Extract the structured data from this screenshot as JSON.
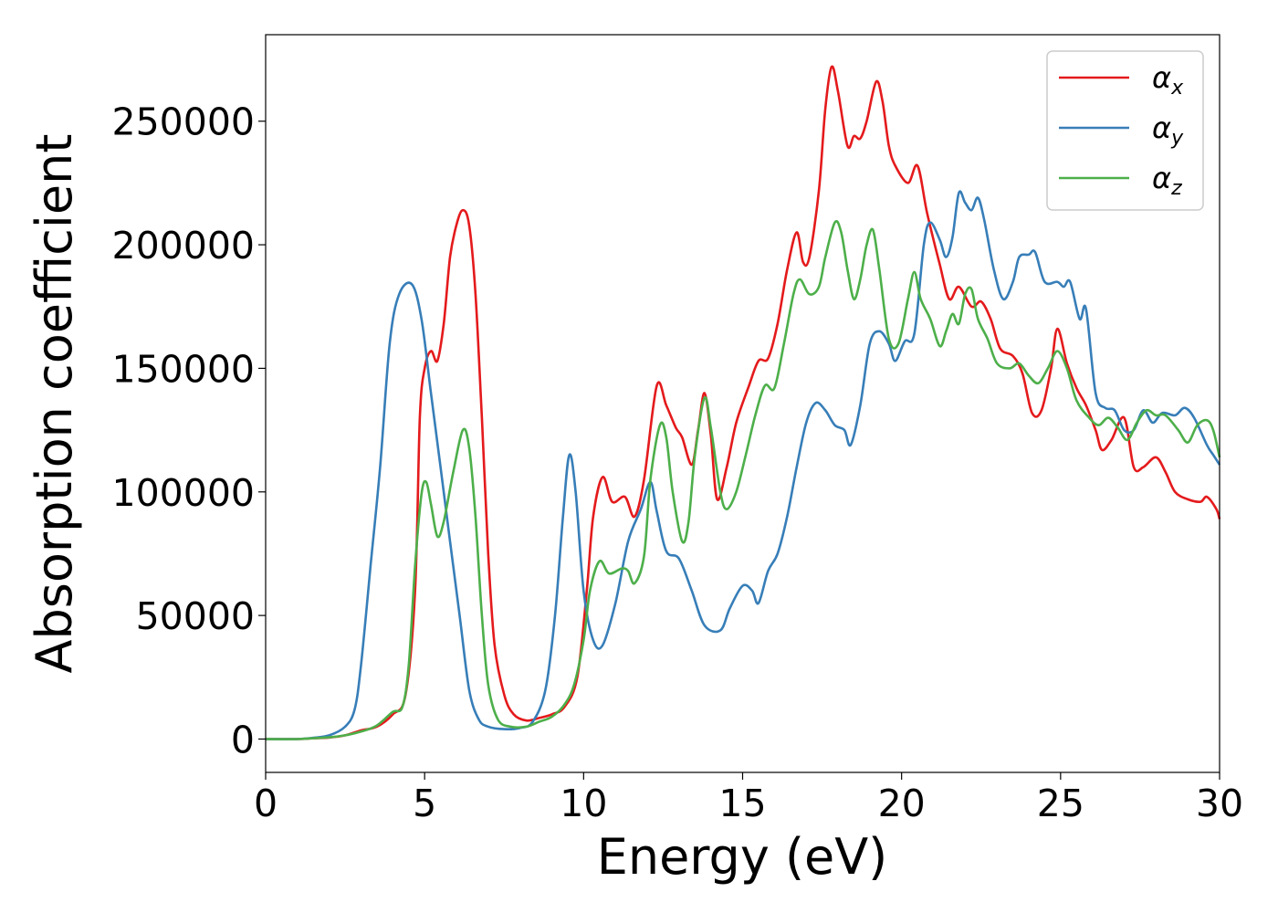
{
  "chart_data": {
    "type": "line",
    "title": "",
    "xlabel": "Energy (eV)",
    "ylabel": "Absorption coefficient",
    "xlim": [
      0,
      30
    ],
    "ylim": [
      -13500,
      285000
    ],
    "xticks": [
      0,
      5,
      10,
      15,
      20,
      25,
      30
    ],
    "yticks": [
      0,
      50000,
      100000,
      150000,
      200000,
      250000
    ],
    "grid": false,
    "legend_position": "top-right",
    "series": [
      {
        "name": "α_x",
        "legend_symbol": "α",
        "legend_subscript": "x",
        "color": "#e41a1c",
        "points": [
          [
            0,
            0
          ],
          [
            1,
            0
          ],
          [
            1.5,
            300
          ],
          [
            2,
            600
          ],
          [
            2.5,
            1500
          ],
          [
            3,
            3500
          ],
          [
            3.5,
            5000
          ],
          [
            4,
            10000
          ],
          [
            4.4,
            18000
          ],
          [
            4.7,
            60000
          ],
          [
            4.85,
            130000
          ],
          [
            5,
            150000
          ],
          [
            5.2,
            157000
          ],
          [
            5.4,
            153000
          ],
          [
            5.6,
            168000
          ],
          [
            5.8,
            195000
          ],
          [
            6,
            208000
          ],
          [
            6.2,
            214000
          ],
          [
            6.4,
            208000
          ],
          [
            6.6,
            180000
          ],
          [
            6.8,
            130000
          ],
          [
            7,
            75000
          ],
          [
            7.2,
            38000
          ],
          [
            7.5,
            18000
          ],
          [
            7.8,
            10000
          ],
          [
            8.2,
            7500
          ],
          [
            8.6,
            8500
          ],
          [
            9,
            10000
          ],
          [
            9.4,
            13000
          ],
          [
            9.8,
            25000
          ],
          [
            10.1,
            60000
          ],
          [
            10.3,
            90000
          ],
          [
            10.6,
            106000
          ],
          [
            10.9,
            96000
          ],
          [
            11.3,
            98000
          ],
          [
            11.6,
            90000
          ],
          [
            11.9,
            105000
          ],
          [
            12.3,
            143000
          ],
          [
            12.6,
            135000
          ],
          [
            12.9,
            126000
          ],
          [
            13.1,
            122000
          ],
          [
            13.4,
            111000
          ],
          [
            13.6,
            125000
          ],
          [
            13.8,
            140000
          ],
          [
            14,
            123000
          ],
          [
            14.2,
            97000
          ],
          [
            14.5,
            110000
          ],
          [
            14.8,
            128000
          ],
          [
            15.2,
            143000
          ],
          [
            15.5,
            153000
          ],
          [
            15.8,
            154000
          ],
          [
            16.1,
            168000
          ],
          [
            16.4,
            190000
          ],
          [
            16.7,
            205000
          ],
          [
            16.9,
            193000
          ],
          [
            17.1,
            195000
          ],
          [
            17.4,
            222000
          ],
          [
            17.6,
            255000
          ],
          [
            17.8,
            272000
          ],
          [
            18,
            262000
          ],
          [
            18.3,
            240000
          ],
          [
            18.5,
            244000
          ],
          [
            18.7,
            243000
          ],
          [
            18.9,
            250000
          ],
          [
            19.2,
            266000
          ],
          [
            19.4,
            258000
          ],
          [
            19.6,
            240000
          ],
          [
            19.8,
            232000
          ],
          [
            20.2,
            225000
          ],
          [
            20.5,
            232000
          ],
          [
            20.8,
            213000
          ],
          [
            21.2,
            192000
          ],
          [
            21.5,
            178000
          ],
          [
            21.8,
            183000
          ],
          [
            22.2,
            175000
          ],
          [
            22.5,
            177000
          ],
          [
            22.8,
            170000
          ],
          [
            23.1,
            158000
          ],
          [
            23.5,
            155000
          ],
          [
            23.8,
            148000
          ],
          [
            24.1,
            132000
          ],
          [
            24.4,
            133000
          ],
          [
            24.7,
            150000
          ],
          [
            24.9,
            166000
          ],
          [
            25.2,
            152000
          ],
          [
            25.5,
            142000
          ],
          [
            25.8,
            135000
          ],
          [
            26.1,
            125000
          ],
          [
            26.3,
            117000
          ],
          [
            26.6,
            121000
          ],
          [
            27,
            130000
          ],
          [
            27.3,
            110000
          ],
          [
            27.6,
            110000
          ],
          [
            28,
            114000
          ],
          [
            28.3,
            108000
          ],
          [
            28.6,
            100000
          ],
          [
            29,
            97000
          ],
          [
            29.4,
            96000
          ],
          [
            29.6,
            98000
          ],
          [
            29.9,
            93000
          ],
          [
            30,
            89000
          ]
        ]
      },
      {
        "name": "α_y",
        "legend_symbol": "α",
        "legend_subscript": "y",
        "color": "#377eb8",
        "points": [
          [
            0,
            0
          ],
          [
            1,
            0
          ],
          [
            1.5,
            500
          ],
          [
            2,
            1500
          ],
          [
            2.5,
            5000
          ],
          [
            2.8,
            12000
          ],
          [
            3,
            30000
          ],
          [
            3.3,
            70000
          ],
          [
            3.6,
            110000
          ],
          [
            3.9,
            160000
          ],
          [
            4.2,
            180000
          ],
          [
            4.6,
            184000
          ],
          [
            4.9,
            170000
          ],
          [
            5.2,
            140000
          ],
          [
            5.5,
            110000
          ],
          [
            5.8,
            80000
          ],
          [
            6.1,
            50000
          ],
          [
            6.4,
            20000
          ],
          [
            6.7,
            8000
          ],
          [
            7,
            5000
          ],
          [
            7.5,
            4000
          ],
          [
            8,
            4500
          ],
          [
            8.4,
            7000
          ],
          [
            8.8,
            20000
          ],
          [
            9.1,
            50000
          ],
          [
            9.35,
            90000
          ],
          [
            9.55,
            115000
          ],
          [
            9.75,
            100000
          ],
          [
            10,
            60000
          ],
          [
            10.3,
            40000
          ],
          [
            10.6,
            38000
          ],
          [
            11,
            55000
          ],
          [
            11.4,
            80000
          ],
          [
            11.8,
            93000
          ],
          [
            12.1,
            104000
          ],
          [
            12.3,
            92000
          ],
          [
            12.6,
            76000
          ],
          [
            13,
            73000
          ],
          [
            13.4,
            60000
          ],
          [
            13.8,
            46000
          ],
          [
            14.3,
            44000
          ],
          [
            14.6,
            53000
          ],
          [
            15,
            62000
          ],
          [
            15.3,
            60000
          ],
          [
            15.5,
            55000
          ],
          [
            15.8,
            68000
          ],
          [
            16.1,
            75000
          ],
          [
            16.4,
            90000
          ],
          [
            16.7,
            110000
          ],
          [
            17,
            128000
          ],
          [
            17.3,
            136000
          ],
          [
            17.6,
            133000
          ],
          [
            17.9,
            127000
          ],
          [
            18.2,
            125000
          ],
          [
            18.4,
            119000
          ],
          [
            18.7,
            135000
          ],
          [
            19,
            160000
          ],
          [
            19.3,
            165000
          ],
          [
            19.6,
            160000
          ],
          [
            19.8,
            153000
          ],
          [
            20.1,
            161000
          ],
          [
            20.4,
            164000
          ],
          [
            20.7,
            200000
          ],
          [
            20.9,
            209000
          ],
          [
            21.2,
            202000
          ],
          [
            21.4,
            195000
          ],
          [
            21.6,
            203000
          ],
          [
            21.8,
            221000
          ],
          [
            22,
            217000
          ],
          [
            22.2,
            214000
          ],
          [
            22.4,
            219000
          ],
          [
            22.6,
            210000
          ],
          [
            22.9,
            190000
          ],
          [
            23.2,
            178000
          ],
          [
            23.5,
            185000
          ],
          [
            23.7,
            195000
          ],
          [
            24,
            196000
          ],
          [
            24.2,
            197000
          ],
          [
            24.5,
            185000
          ],
          [
            24.9,
            185000
          ],
          [
            25.1,
            183000
          ],
          [
            25.3,
            185000
          ],
          [
            25.6,
            170000
          ],
          [
            25.8,
            174000
          ],
          [
            26.1,
            140000
          ],
          [
            26.4,
            134000
          ],
          [
            26.7,
            133000
          ],
          [
            27,
            125000
          ],
          [
            27.3,
            125000
          ],
          [
            27.6,
            133000
          ],
          [
            27.9,
            128000
          ],
          [
            28.2,
            132000
          ],
          [
            28.6,
            131000
          ],
          [
            28.9,
            134000
          ],
          [
            29.2,
            130000
          ],
          [
            29.6,
            119000
          ],
          [
            29.8,
            115000
          ],
          [
            30,
            111000
          ]
        ]
      },
      {
        "name": "α_z",
        "legend_symbol": "α",
        "legend_subscript": "z",
        "color": "#4daf4a",
        "points": [
          [
            0,
            0
          ],
          [
            1,
            0
          ],
          [
            2,
            700
          ],
          [
            2.5,
            1500
          ],
          [
            3,
            3000
          ],
          [
            3.5,
            5500
          ],
          [
            4,
            11000
          ],
          [
            4.3,
            13000
          ],
          [
            4.5,
            30000
          ],
          [
            4.7,
            70000
          ],
          [
            4.9,
            99000
          ],
          [
            5.05,
            104000
          ],
          [
            5.2,
            95000
          ],
          [
            5.4,
            82000
          ],
          [
            5.6,
            88000
          ],
          [
            5.9,
            108000
          ],
          [
            6.2,
            125000
          ],
          [
            6.4,
            118000
          ],
          [
            6.6,
            90000
          ],
          [
            6.8,
            50000
          ],
          [
            7,
            22000
          ],
          [
            7.3,
            8000
          ],
          [
            7.7,
            5000
          ],
          [
            8.2,
            5000
          ],
          [
            8.6,
            7000
          ],
          [
            9,
            9000
          ],
          [
            9.4,
            14000
          ],
          [
            9.7,
            22000
          ],
          [
            10,
            40000
          ],
          [
            10.2,
            60000
          ],
          [
            10.5,
            72000
          ],
          [
            10.8,
            67000
          ],
          [
            11.2,
            69000
          ],
          [
            11.4,
            68000
          ],
          [
            11.6,
            63000
          ],
          [
            11.9,
            74000
          ],
          [
            12.1,
            105000
          ],
          [
            12.4,
            127000
          ],
          [
            12.6,
            122000
          ],
          [
            12.8,
            100000
          ],
          [
            13.1,
            80000
          ],
          [
            13.3,
            88000
          ],
          [
            13.5,
            115000
          ],
          [
            13.8,
            138000
          ],
          [
            14,
            126000
          ],
          [
            14.3,
            100000
          ],
          [
            14.5,
            93000
          ],
          [
            14.8,
            100000
          ],
          [
            15.1,
            115000
          ],
          [
            15.4,
            131000
          ],
          [
            15.7,
            143000
          ],
          [
            16,
            142000
          ],
          [
            16.3,
            160000
          ],
          [
            16.6,
            180000
          ],
          [
            16.8,
            186000
          ],
          [
            17.1,
            180000
          ],
          [
            17.4,
            183000
          ],
          [
            17.6,
            195000
          ],
          [
            17.9,
            209000
          ],
          [
            18.1,
            205000
          ],
          [
            18.3,
            190000
          ],
          [
            18.5,
            178000
          ],
          [
            18.7,
            186000
          ],
          [
            18.9,
            200000
          ],
          [
            19.1,
            206000
          ],
          [
            19.3,
            190000
          ],
          [
            19.6,
            162000
          ],
          [
            19.9,
            160000
          ],
          [
            20.2,
            178000
          ],
          [
            20.4,
            189000
          ],
          [
            20.6,
            178000
          ],
          [
            20.9,
            170000
          ],
          [
            21.2,
            159000
          ],
          [
            21.4,
            165000
          ],
          [
            21.6,
            172000
          ],
          [
            21.8,
            168000
          ],
          [
            22,
            180000
          ],
          [
            22.2,
            182000
          ],
          [
            22.4,
            170000
          ],
          [
            22.7,
            162000
          ],
          [
            23,
            152000
          ],
          [
            23.4,
            150000
          ],
          [
            23.7,
            152000
          ],
          [
            24,
            147000
          ],
          [
            24.3,
            144000
          ],
          [
            24.6,
            150000
          ],
          [
            24.9,
            157000
          ],
          [
            25.2,
            150000
          ],
          [
            25.5,
            137000
          ],
          [
            25.9,
            130000
          ],
          [
            26.2,
            127000
          ],
          [
            26.5,
            130000
          ],
          [
            26.8,
            126000
          ],
          [
            27.1,
            121000
          ],
          [
            27.4,
            128000
          ],
          [
            27.7,
            133000
          ],
          [
            28,
            131000
          ],
          [
            28.3,
            131000
          ],
          [
            28.7,
            125000
          ],
          [
            29,
            120000
          ],
          [
            29.3,
            127000
          ],
          [
            29.6,
            129000
          ],
          [
            29.8,
            125000
          ],
          [
            30,
            114000
          ]
        ]
      }
    ]
  }
}
